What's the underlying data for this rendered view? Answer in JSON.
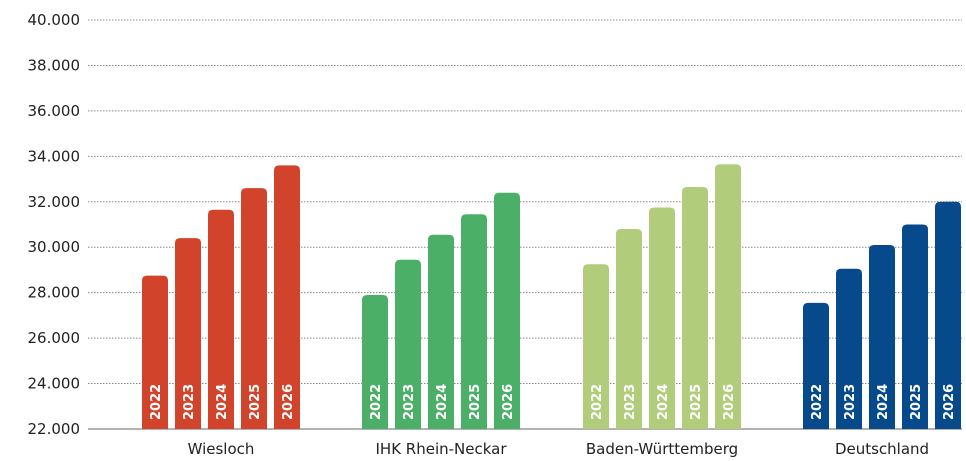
{
  "chart_data": {
    "type": "bar",
    "title": "",
    "xlabel": "",
    "ylabel": "",
    "ylim": [
      22000,
      40000
    ],
    "yticks": [
      22000,
      24000,
      26000,
      28000,
      30000,
      32000,
      34000,
      36000,
      38000,
      40000
    ],
    "ytick_labels": [
      "22.000",
      "24.000",
      "26.000",
      "28.000",
      "30.000",
      "32.000",
      "34.000",
      "36.000",
      "38.000",
      "40.000"
    ],
    "grid": "horizontal dotted",
    "legend": "none",
    "series_labels": [
      "2022",
      "2023",
      "2024",
      "2025",
      "2026"
    ],
    "groups": [
      {
        "name": "Wiesloch",
        "color": "#d2432b",
        "values": [
          28750,
          30400,
          31650,
          32600,
          33600
        ]
      },
      {
        "name": "IHK Rhein-Neckar",
        "color": "#4caf67",
        "values": [
          27900,
          29450,
          30550,
          31450,
          32400
        ]
      },
      {
        "name": "Baden-Württemberg",
        "color": "#b1cd7b",
        "values": [
          29250,
          30800,
          31750,
          32650,
          33650
        ]
      },
      {
        "name": "Deutschland",
        "color": "#064a8c",
        "values": [
          27550,
          29050,
          30100,
          31000,
          32000
        ]
      }
    ]
  }
}
